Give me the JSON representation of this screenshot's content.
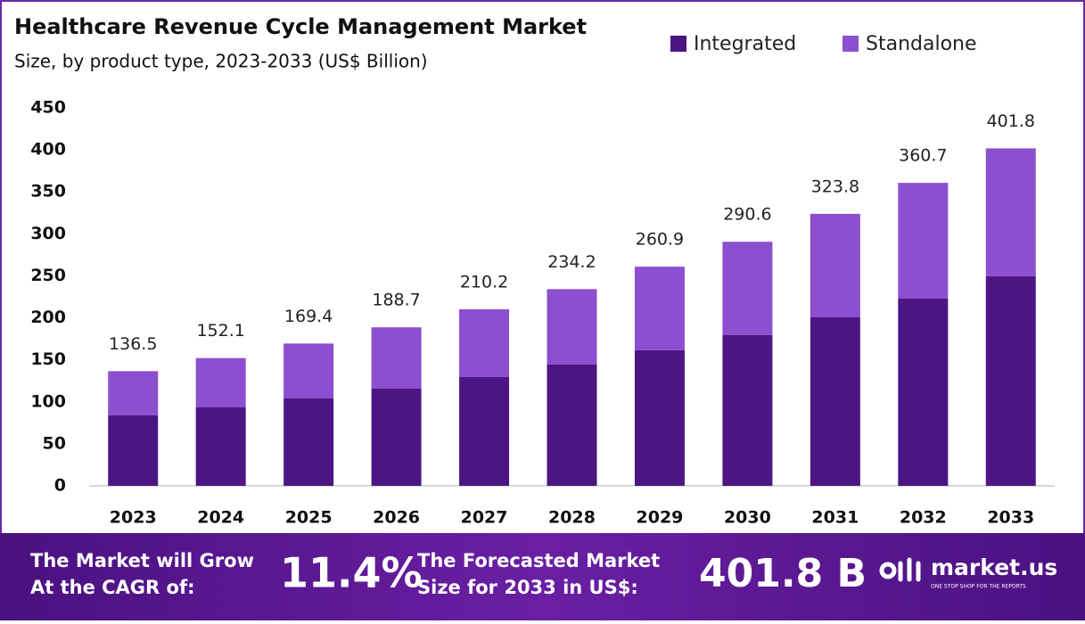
{
  "chart_data": {
    "type": "stacked-bar",
    "title": "Healthcare Revenue Cycle Management Market",
    "subtitle": "Size, by product type, 2023-2033 (US$ Billion)",
    "categories": [
      "2023",
      "2024",
      "2025",
      "2026",
      "2027",
      "2028",
      "2029",
      "2030",
      "2031",
      "2032",
      "2033"
    ],
    "series": [
      {
        "name": "Integrated",
        "color": "#4b1683",
        "values": [
          83.9,
          93.4,
          104.0,
          115.7,
          129.5,
          144.4,
          161.4,
          179.4,
          200.6,
          222.9,
          249.5
        ]
      },
      {
        "name": "Standalone",
        "color": "#8c4fcf",
        "values": [
          52.6,
          58.7,
          65.4,
          73.0,
          80.7,
          89.8,
          99.5,
          111.2,
          123.2,
          137.8,
          152.3
        ]
      }
    ],
    "totals": [
      136.5,
      152.1,
      169.4,
      188.7,
      210.2,
      234.2,
      260.9,
      290.6,
      323.8,
      360.7,
      401.8
    ],
    "ylim": [
      0,
      450
    ],
    "yticks": [
      0,
      50,
      100,
      150,
      200,
      250,
      300,
      350,
      400,
      450
    ],
    "grid": false,
    "legend": "top-right"
  },
  "footer": {
    "cagr_text": [
      "The Market will Grow",
      "At the CAGR of:"
    ],
    "cagr_value": "11.4%",
    "forecast_text": [
      "The Forecasted Market",
      "Size for 2033 in US$:"
    ],
    "forecast_value": "401.8 B",
    "brand": "market.us",
    "tagline": "ONE STOP SHOP FOR THE REPORTS"
  }
}
